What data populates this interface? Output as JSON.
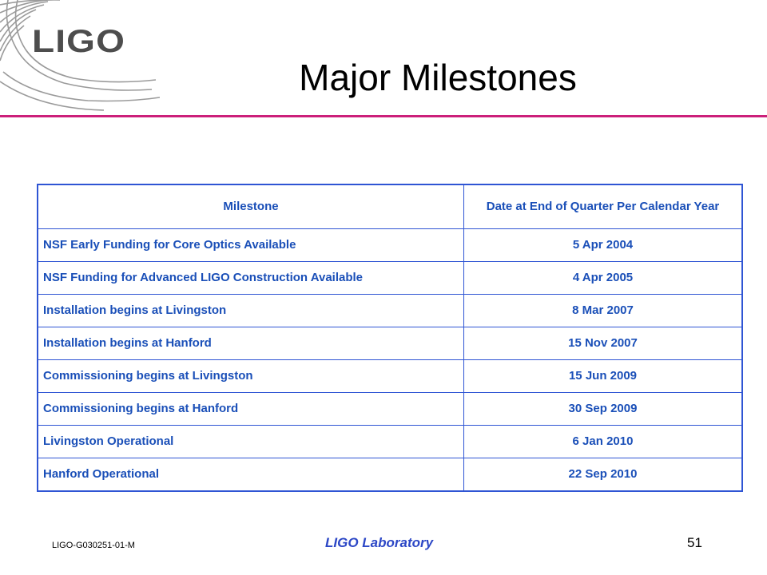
{
  "logo": {
    "text": "LIGO",
    "color": "#4d4d4d"
  },
  "slide": {
    "title": "Major Milestones",
    "rule_color": "#cc1f7a"
  },
  "table": {
    "headers": [
      "Milestone",
      "Date at End of Quarter Per Calendar Year"
    ],
    "rows": [
      {
        "milestone": "NSF Early Funding for Core Optics Available",
        "date": "5 Apr 2004"
      },
      {
        "milestone": "NSF Funding for Advanced LIGO Construction Available",
        "date": "4 Apr 2005"
      },
      {
        "milestone": "Installation begins at Livingston",
        "date": "8 Mar 2007"
      },
      {
        "milestone": "Installation begins at Hanford",
        "date": "15 Nov 2007"
      },
      {
        "milestone": "Commissioning begins at Livingston",
        "date": "15 Jun 2009"
      },
      {
        "milestone": "Commissioning begins at Hanford",
        "date": "30 Sep 2009"
      },
      {
        "milestone": "Livingston Operational",
        "date": "6 Jan 2010"
      },
      {
        "milestone": "Hanford Operational",
        "date": "22 Sep 2010"
      }
    ],
    "border_color": "#2f55d4",
    "text_color": "#1a4fb8"
  },
  "footer": {
    "doc_id": "LIGO-G030251-01-M",
    "lab": "LIGO Laboratory",
    "page": "51"
  }
}
